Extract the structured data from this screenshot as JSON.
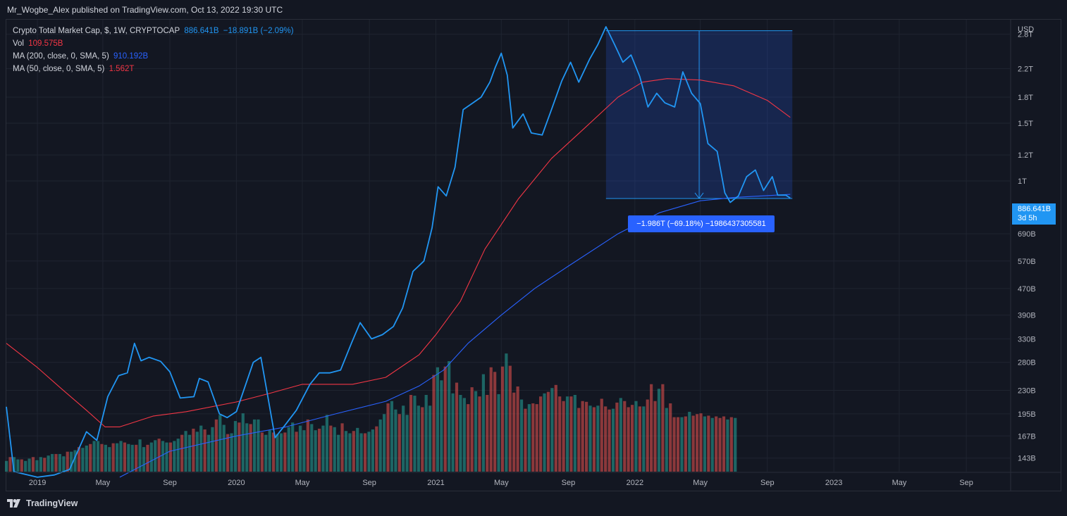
{
  "header": {
    "publisher_line": "Mr_Wogbe_Alex published on TradingView.com, Oct 13, 2022 19:30 UTC"
  },
  "legend": {
    "symbol": {
      "title": "Crypto Total Market Cap, $, 1W, CRYPTOCAP",
      "price": "886.641B",
      "change": "−18.891B (−2.09%)",
      "color": "#2196f3"
    },
    "vol": {
      "label": "Vol",
      "value": "109.575B",
      "color": "#f23645"
    },
    "ma200": {
      "label": "MA (200, close, 0, SMA, 5)",
      "value": "910.192B",
      "color": "#2962ff"
    },
    "ma50": {
      "label": "MA (50, close, 0, SMA, 5)",
      "value": "1.562T",
      "color": "#f23645"
    }
  },
  "price_scale": {
    "currency": "USD",
    "ticks": [
      "2.8T",
      "2.2T",
      "1.8T",
      "1.5T",
      "1.2T",
      "1T",
      "690B",
      "570B",
      "470B",
      "390B",
      "330B",
      "280B",
      "230B",
      "195B",
      "167B",
      "143B"
    ],
    "last_price_badge": {
      "price": "886.641B",
      "countdown": "3d 5h",
      "color": "#2196f3"
    }
  },
  "time_scale": {
    "labels": [
      "2019",
      "May",
      "Sep",
      "2020",
      "May",
      "Sep",
      "2021",
      "May",
      "Sep",
      "2022",
      "May",
      "Sep",
      "2023",
      "May",
      "Sep"
    ]
  },
  "measure_tool": {
    "label": "−1.986T (−69.18%) −1986437305581",
    "color": "#2962ff"
  },
  "footer": {
    "brand": "TradingView"
  },
  "chart_data": {
    "type": "line",
    "title": "Crypto Total Market Cap, $, 1W, CRYPTOCAP",
    "y_scale": "log",
    "y_unit": "USD",
    "ylim": [
      130000000000,
      3100000000000
    ],
    "x_range": [
      "2018-11-05",
      "2023-11-20"
    ],
    "series": [
      {
        "name": "Crypto Total Market Cap",
        "color": "#2196f3",
        "points": [
          [
            "2018-11-05",
            205000000000.0
          ],
          [
            "2018-11-19",
            130000000000.0
          ],
          [
            "2019-01-01",
            125000000000.0
          ],
          [
            "2019-02-01",
            127000000000.0
          ],
          [
            "2019-03-01",
            132000000000.0
          ],
          [
            "2019-04-01",
            172000000000.0
          ],
          [
            "2019-04-20",
            162000000000.0
          ],
          [
            "2019-05-10",
            220000000000.0
          ],
          [
            "2019-05-30",
            255000000000.0
          ],
          [
            "2019-06-15",
            260000000000.0
          ],
          [
            "2019-06-28",
            320000000000.0
          ],
          [
            "2019-07-10",
            283000000000.0
          ],
          [
            "2019-07-25",
            290000000000.0
          ],
          [
            "2019-08-15",
            282000000000.0
          ],
          [
            "2019-09-01",
            262000000000.0
          ],
          [
            "2019-09-20",
            218000000000.0
          ],
          [
            "2019-10-15",
            220000000000.0
          ],
          [
            "2019-10-25",
            250000000000.0
          ],
          [
            "2019-11-10",
            244000000000.0
          ],
          [
            "2019-12-01",
            195000000000.0
          ],
          [
            "2019-12-15",
            190000000000.0
          ],
          [
            "2020-01-01",
            198000000000.0
          ],
          [
            "2020-02-01",
            280000000000.0
          ],
          [
            "2020-02-15",
            290000000000.0
          ],
          [
            "2020-03-12",
            165000000000.0
          ],
          [
            "2020-03-30",
            180000000000.0
          ],
          [
            "2020-04-20",
            200000000000.0
          ],
          [
            "2020-05-15",
            240000000000.0
          ],
          [
            "2020-06-01",
            260000000000.0
          ],
          [
            "2020-06-20",
            260000000000.0
          ],
          [
            "2020-07-10",
            265000000000.0
          ],
          [
            "2020-07-30",
            320000000000.0
          ],
          [
            "2020-08-15",
            370000000000.0
          ],
          [
            "2020-09-05",
            330000000000.0
          ],
          [
            "2020-09-25",
            340000000000.0
          ],
          [
            "2020-10-15",
            360000000000.0
          ],
          [
            "2020-11-01",
            410000000000.0
          ],
          [
            "2020-11-20",
            530000000000.0
          ],
          [
            "2020-12-10",
            570000000000.0
          ],
          [
            "2020-12-25",
            720000000000.0
          ],
          [
            "2021-01-05",
            960000000000.0
          ],
          [
            "2021-01-20",
            900000000000.0
          ],
          [
            "2021-02-05",
            1100000000000.0
          ],
          [
            "2021-02-20",
            1650000000000.0
          ],
          [
            "2021-03-10",
            1730000000000.0
          ],
          [
            "2021-03-25",
            1800000000000.0
          ],
          [
            "2021-04-10",
            2000000000000.0
          ],
          [
            "2021-04-20",
            2220000000000.0
          ],
          [
            "2021-05-01",
            2450000000000.0
          ],
          [
            "2021-05-12",
            2100000000000.0
          ],
          [
            "2021-05-22",
            1450000000000.0
          ],
          [
            "2021-06-10",
            1600000000000.0
          ],
          [
            "2021-06-25",
            1400000000000.0
          ],
          [
            "2021-07-15",
            1380000000000.0
          ],
          [
            "2021-08-01",
            1650000000000.0
          ],
          [
            "2021-08-20",
            2020000000000.0
          ],
          [
            "2021-09-05",
            2300000000000.0
          ],
          [
            "2021-09-20",
            2000000000000.0
          ],
          [
            "2021-10-10",
            2350000000000.0
          ],
          [
            "2021-10-25",
            2600000000000.0
          ],
          [
            "2021-11-09",
            2950000000000.0
          ],
          [
            "2021-11-25",
            2600000000000.0
          ],
          [
            "2021-12-10",
            2300000000000.0
          ],
          [
            "2021-12-25",
            2420000000000.0
          ],
          [
            "2022-01-10",
            2080000000000.0
          ],
          [
            "2022-01-25",
            1680000000000.0
          ],
          [
            "2022-02-10",
            1850000000000.0
          ],
          [
            "2022-02-25",
            1730000000000.0
          ],
          [
            "2022-03-15",
            1680000000000.0
          ],
          [
            "2022-03-30",
            2150000000000.0
          ],
          [
            "2022-04-15",
            1850000000000.0
          ],
          [
            "2022-05-01",
            1720000000000.0
          ],
          [
            "2022-05-15",
            1300000000000.0
          ],
          [
            "2022-06-01",
            1230000000000.0
          ],
          [
            "2022-06-15",
            920000000000.0
          ],
          [
            "2022-06-25",
            860000000000.0
          ],
          [
            "2022-07-10",
            900000000000.0
          ],
          [
            "2022-07-25",
            1030000000000.0
          ],
          [
            "2022-08-10",
            1080000000000.0
          ],
          [
            "2022-08-25",
            935000000000.0
          ],
          [
            "2022-09-10",
            1030000000000.0
          ],
          [
            "2022-09-20",
            905000000000.0
          ],
          [
            "2022-10-05",
            905000000000.0
          ],
          [
            "2022-10-13",
            886641000000.0
          ]
        ]
      },
      {
        "name": "MA (50, close, 0, SMA, 5)",
        "color": "#f23645",
        "points": [
          [
            "2018-11-05",
            320000000000.0
          ],
          [
            "2019-01-01",
            270000000000.0
          ],
          [
            "2019-02-15",
            232000000000.0
          ],
          [
            "2019-04-01",
            200000000000.0
          ],
          [
            "2019-05-05",
            178000000000.0
          ],
          [
            "2019-06-01",
            178000000000.0
          ],
          [
            "2019-08-01",
            192000000000.0
          ],
          [
            "2019-10-01",
            198000000000.0
          ],
          [
            "2020-01-01",
            212000000000.0
          ],
          [
            "2020-03-01",
            225000000000.0
          ],
          [
            "2020-05-01",
            240000000000.0
          ],
          [
            "2020-08-01",
            240000000000.0
          ],
          [
            "2020-10-01",
            252000000000.0
          ],
          [
            "2020-12-01",
            295000000000.0
          ],
          [
            "2021-01-01",
            340000000000.0
          ],
          [
            "2021-02-15",
            430000000000.0
          ],
          [
            "2021-04-01",
            620000000000.0
          ],
          [
            "2021-06-01",
            880000000000.0
          ],
          [
            "2021-08-01",
            1170000000000.0
          ],
          [
            "2021-10-01",
            1450000000000.0
          ],
          [
            "2021-12-01",
            1800000000000.0
          ],
          [
            "2022-01-15",
            2000000000000.0
          ],
          [
            "2022-03-01",
            2050000000000.0
          ],
          [
            "2022-05-01",
            2030000000000.0
          ],
          [
            "2022-07-01",
            1950000000000.0
          ],
          [
            "2022-09-01",
            1760000000000.0
          ],
          [
            "2022-10-13",
            1562000000000.0
          ]
        ]
      },
      {
        "name": "MA (200, close, 0, SMA, 5)",
        "color": "#2962ff",
        "points": [
          [
            "2019-06-01",
            125000000000.0
          ],
          [
            "2019-09-01",
            150000000000.0
          ],
          [
            "2020-01-01",
            167000000000.0
          ],
          [
            "2020-04-01",
            178000000000.0
          ],
          [
            "2020-07-01",
            195000000000.0
          ],
          [
            "2020-10-01",
            213000000000.0
          ],
          [
            "2020-12-01",
            237000000000.0
          ],
          [
            "2021-01-15",
            265000000000.0
          ],
          [
            "2021-03-01",
            320000000000.0
          ],
          [
            "2021-05-01",
            390000000000.0
          ],
          [
            "2021-07-01",
            470000000000.0
          ],
          [
            "2021-09-01",
            550000000000.0
          ],
          [
            "2021-12-01",
            690000000000.0
          ],
          [
            "2022-02-15",
            800000000000.0
          ],
          [
            "2022-05-01",
            870000000000.0
          ],
          [
            "2022-07-01",
            890000000000.0
          ],
          [
            "2022-10-13",
            910192000000.0
          ]
        ]
      }
    ],
    "measure": {
      "from_date": "2021-11-09",
      "to_date": "2022-10-13",
      "from_value": 2870000000000.0,
      "to_value": 884000000000.0,
      "change": "−1.986T (−69.18%)"
    },
    "volume": {
      "name": "Vol",
      "up_color": "#26a69a",
      "down_color": "#ef5350",
      "last_value": "109.575B",
      "relative_heights": [
        0.14,
        0.19,
        0.19,
        0.16,
        0.16,
        0.14,
        0.17,
        0.19,
        0.15,
        0.19,
        0.18,
        0.21,
        0.23,
        0.23,
        0.23,
        0.2,
        0.26,
        0.26,
        0.28,
        0.32,
        0.31,
        0.34,
        0.36,
        0.4,
        0.4,
        0.36,
        0.35,
        0.32,
        0.37,
        0.37,
        0.4,
        0.38,
        0.36,
        0.35,
        0.35,
        0.42,
        0.32,
        0.35,
        0.38,
        0.41,
        0.43,
        0.4,
        0.38,
        0.38,
        0.4,
        0.43,
        0.48,
        0.53,
        0.48,
        0.56,
        0.52,
        0.6,
        0.55,
        0.48,
        0.58,
        0.68,
        0.74,
        0.61,
        0.49,
        0.5,
        0.66,
        0.64,
        0.76,
        0.63,
        0.62,
        0.68,
        0.68,
        0.51,
        0.48,
        0.54,
        0.51,
        0.49,
        0.5,
        0.51,
        0.58,
        0.64,
        0.52,
        0.6,
        0.54,
        0.68,
        0.62,
        0.54,
        0.56,
        0.6,
        0.74,
        0.6,
        0.58,
        0.48,
        0.63,
        0.53,
        0.5,
        0.53,
        0.57,
        0.5,
        0.5,
        0.52,
        0.55,
        0.59,
        0.68,
        0.75,
        0.89,
        0.92,
        0.81,
        0.75,
        0.86,
        0.74,
        1.0,
        0.99,
        0.86,
        0.84,
        1.0,
        0.86,
        1.26,
        1.36,
        1.19,
        1.37,
        1.44,
        1.02,
        1.16,
        1.0,
        0.96,
        0.88,
        1.1,
        1.05,
        0.98,
        1.27,
        1.0,
        1.36,
        1.3,
        1.01,
        1.37,
        1.54,
        1.38,
        1.03,
        1.11,
        0.94,
        0.82,
        0.88,
        0.89,
        0.88,
        0.98,
        1.02,
        1.04,
        1.09,
        1.13,
        0.98,
        0.92,
        0.98,
        0.98,
        1.0,
        0.83,
        0.92,
        0.91,
        0.86,
        0.84,
        0.86,
        0.95,
        0.85,
        0.81,
        0.82,
        0.9,
        0.96,
        0.92,
        0.84,
        0.87,
        0.92,
        0.85,
        0.85,
        0.94,
        1.14,
        0.92,
        1.08,
        1.14,
        0.83,
        0.89,
        0.71,
        0.71,
        0.71,
        0.72,
        0.78,
        0.73,
        0.75,
        0.76,
        0.72,
        0.73,
        0.7,
        0.72,
        0.7,
        0.72,
        0.68,
        0.71,
        0.7
      ]
    }
  }
}
